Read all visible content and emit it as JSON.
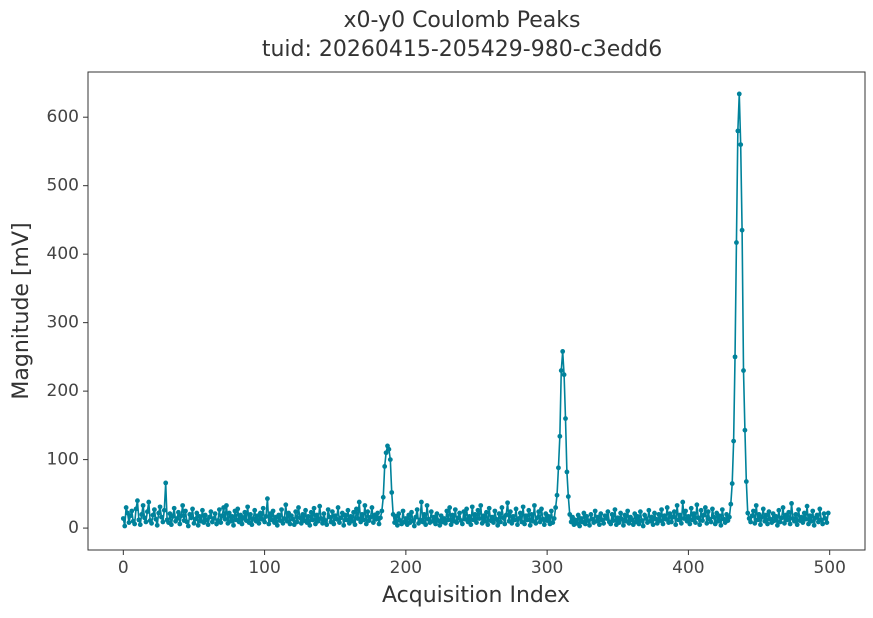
{
  "chart_data": {
    "type": "line",
    "title": "x0-y0 Coulomb Peaks",
    "subtitle": "tuid: 20260415-205429-980-c3edd6",
    "x_label": "Acquisition Index",
    "y_label": "Magnitude [mV]",
    "color": "#00829b",
    "xlim": [
      -25,
      525
    ],
    "xticks": [
      0,
      100,
      200,
      300,
      400,
      500
    ],
    "ylim": [
      -32,
      666
    ],
    "yticks": [
      0,
      100,
      200,
      300,
      400,
      500,
      600
    ],
    "values": [
      14,
      3,
      30,
      22,
      8,
      18,
      25,
      10,
      6,
      28,
      40,
      12,
      5,
      20,
      33,
      15,
      9,
      24,
      38,
      11,
      7,
      19,
      27,
      13,
      4,
      22,
      31,
      16,
      9,
      26,
      66,
      12,
      8,
      21,
      5,
      17,
      29,
      10,
      14,
      23,
      6,
      18,
      33,
      11,
      25,
      9,
      3,
      20,
      15,
      28,
      7,
      13,
      22,
      4,
      17,
      10,
      26,
      8,
      19,
      12,
      5,
      16,
      24,
      9,
      14,
      21,
      6,
      11,
      27,
      8,
      18,
      30,
      13,
      33,
      7,
      22,
      10,
      17,
      4,
      25,
      12,
      28,
      9,
      19,
      6,
      15,
      23,
      11,
      31,
      8,
      20,
      5,
      14,
      26,
      10,
      18,
      7,
      22,
      13,
      29,
      9,
      17,
      43,
      6,
      21,
      12,
      25,
      8,
      16,
      4,
      19,
      11,
      27,
      7,
      14,
      34,
      10,
      22,
      6,
      18,
      13,
      5,
      24,
      9,
      30,
      15,
      7,
      20,
      11,
      26,
      8,
      17,
      4,
      23,
      12,
      29,
      6,
      19,
      10,
      32,
      14,
      7,
      21,
      11,
      5,
      27,
      16,
      9,
      24,
      6,
      18,
      13,
      30,
      8,
      15,
      22,
      4,
      19,
      12,
      26,
      7,
      17,
      10,
      23,
      5,
      28,
      14,
      38,
      9,
      20,
      12,
      33,
      6,
      24,
      11,
      16,
      30,
      8,
      19,
      13,
      22,
      6,
      15,
      25,
      45,
      90,
      110,
      120,
      115,
      100,
      52,
      20,
      8,
      17,
      4,
      21,
      11,
      6,
      25,
      9,
      14,
      5,
      19,
      8,
      23,
      11,
      3,
      16,
      27,
      7,
      12,
      38,
      9,
      20,
      5,
      33,
      13,
      8,
      24,
      10,
      16,
      6,
      21,
      11,
      4,
      18,
      9,
      14,
      7,
      25,
      12,
      30,
      5,
      19,
      10,
      27,
      8,
      15,
      22,
      11,
      6,
      24,
      13,
      28,
      9,
      17,
      5,
      31,
      12,
      20,
      8,
      26,
      14,
      33,
      7,
      18,
      10,
      23,
      5,
      29,
      11,
      16,
      8,
      25,
      13,
      4,
      21,
      9,
      30,
      15,
      6,
      19,
      37,
      10,
      24,
      7,
      17,
      12,
      28,
      5,
      14,
      22,
      9,
      31,
      6,
      18,
      12,
      26,
      4,
      20,
      10,
      33,
      7,
      15,
      24,
      9,
      28,
      13,
      5,
      21,
      11,
      17,
      6,
      25,
      8,
      14,
      30,
      48,
      88,
      134,
      230,
      258,
      224,
      160,
      82,
      46,
      20,
      9,
      16,
      5,
      12,
      7,
      19,
      3,
      14,
      9,
      22,
      6,
      17,
      11,
      4,
      20,
      13,
      8,
      25,
      10,
      16,
      5,
      21,
      12,
      7,
      18,
      14,
      24,
      9,
      6,
      20,
      11,
      27,
      5,
      15,
      8,
      22,
      13,
      4,
      19,
      10,
      25,
      7,
      16,
      12,
      5,
      21,
      9,
      17,
      6,
      24,
      11,
      3,
      19,
      14,
      8,
      26,
      10,
      16,
      5,
      22,
      13,
      7,
      20,
      11,
      27,
      6,
      18,
      13,
      30,
      8,
      21,
      9,
      16,
      24,
      5,
      33,
      12,
      19,
      7,
      38,
      14,
      25,
      10,
      17,
      6,
      29,
      12,
      21,
      8,
      34,
      15,
      5,
      26,
      11,
      19,
      30,
      7,
      24,
      13,
      9,
      28,
      16,
      6,
      22,
      10,
      18,
      4,
      27,
      13,
      8,
      20,
      11,
      16,
      35,
      65,
      127,
      250,
      417,
      580,
      634,
      560,
      435,
      230,
      143,
      68,
      22,
      14,
      9,
      18,
      25,
      7,
      33,
      12,
      20,
      5,
      16,
      28,
      10,
      19,
      6,
      24,
      13,
      8,
      21,
      11,
      17,
      4,
      26,
      9,
      15,
      30,
      7,
      19,
      12,
      23,
      6,
      36,
      14,
      10,
      20,
      5,
      27,
      11,
      16,
      8,
      22,
      13,
      32,
      6,
      18,
      10,
      25,
      4,
      15,
      19,
      9,
      28,
      12,
      6,
      21,
      14,
      8,
      22
    ]
  }
}
